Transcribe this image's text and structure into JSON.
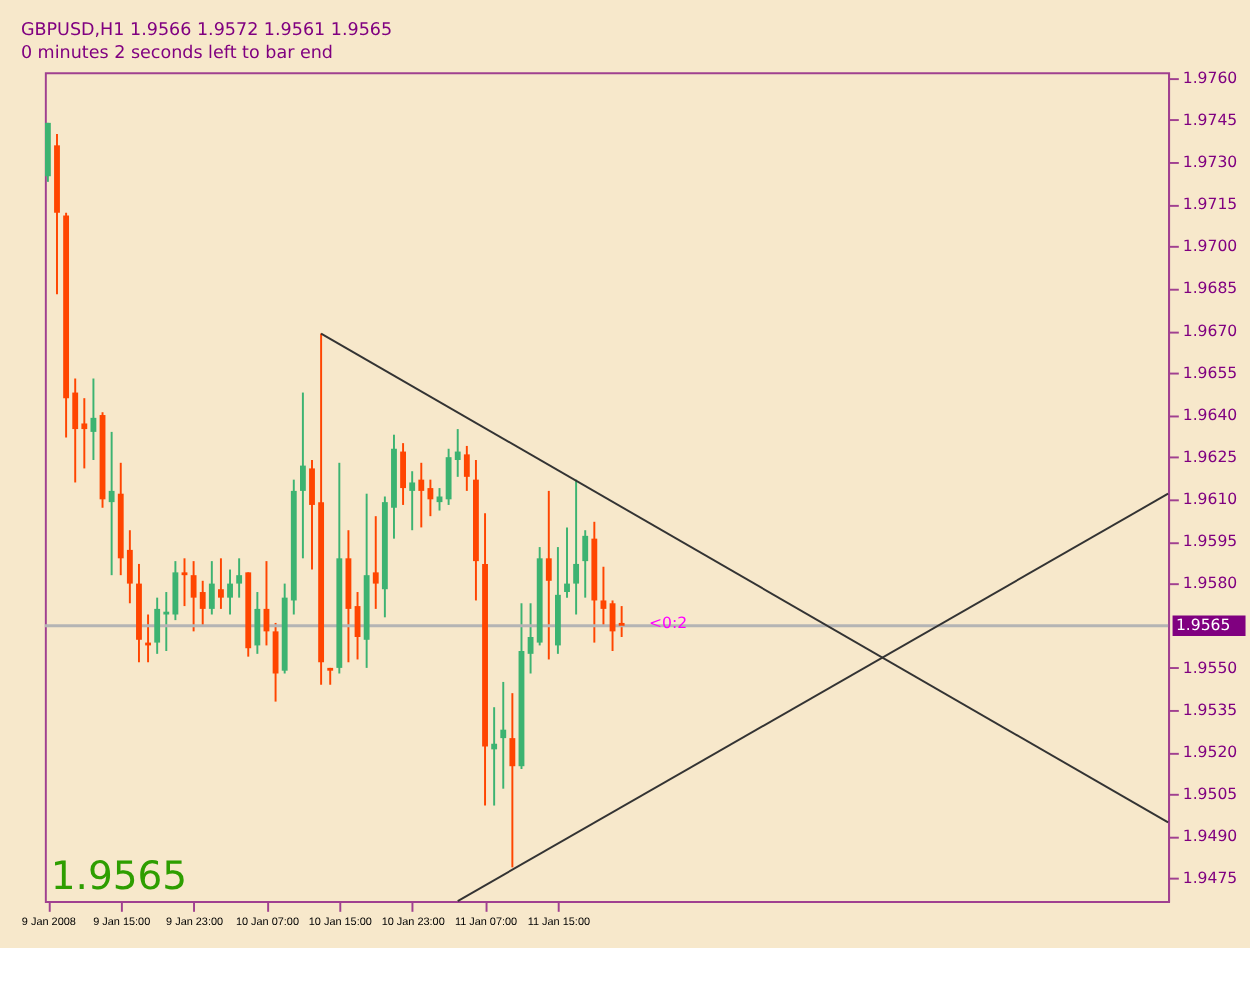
{
  "chart_data": {
    "type": "candlestick",
    "title": "GBPUSD,H1  1.9566 1.9572 1.9561 1.9565",
    "subtitle": "0 minutes 2 seconds left to bar end",
    "annotations": [
      "1.9565",
      {
        "text": "<0:2",
        "x": "2008-01-11T22:00",
        "y": 1.9565
      }
    ],
    "series": [
      {
        "type": "candlestick",
        "x": [
          "2008-01-09T07:00",
          "2008-01-09T08:00",
          "2008-01-09T09:00",
          "2008-01-09T10:00",
          "2008-01-09T11:00",
          "2008-01-09T12:00",
          "2008-01-09T13:00",
          "2008-01-09T14:00",
          "2008-01-09T15:00",
          "2008-01-09T16:00",
          "2008-01-09T17:00",
          "2008-01-09T18:00",
          "2008-01-09T19:00",
          "2008-01-09T20:00",
          "2008-01-09T21:00",
          "2008-01-09T22:00",
          "2008-01-09T23:00",
          "2008-01-10T00:00",
          "2008-01-10T01:00",
          "2008-01-10T02:00",
          "2008-01-10T03:00",
          "2008-01-10T04:00",
          "2008-01-10T05:00",
          "2008-01-10T06:00",
          "2008-01-10T07:00",
          "2008-01-10T08:00",
          "2008-01-10T09:00",
          "2008-01-10T10:00",
          "2008-01-10T11:00",
          "2008-01-10T12:00",
          "2008-01-10T13:00",
          "2008-01-10T14:00",
          "2008-01-10T15:00",
          "2008-01-10T16:00",
          "2008-01-10T17:00",
          "2008-01-10T18:00",
          "2008-01-10T19:00",
          "2008-01-10T20:00",
          "2008-01-10T21:00",
          "2008-01-10T22:00",
          "2008-01-10T23:00",
          "2008-01-11T00:00",
          "2008-01-11T01:00",
          "2008-01-11T02:00",
          "2008-01-11T03:00",
          "2008-01-11T04:00",
          "2008-01-11T05:00",
          "2008-01-11T06:00",
          "2008-01-11T07:00",
          "2008-01-11T08:00",
          "2008-01-11T09:00",
          "2008-01-11T10:00",
          "2008-01-11T11:00",
          "2008-01-11T12:00",
          "2008-01-11T13:00",
          "2008-01-11T14:00",
          "2008-01-11T15:00",
          "2008-01-11T16:00",
          "2008-01-11T17:00",
          "2008-01-11T18:00",
          "2008-01-11T19:00",
          "2008-01-11T20:00",
          "2008-01-11T21:00",
          "2008-01-11T22:00"
        ],
        "ohlc": [
          [
            1.9725,
            1.9744,
            1.9723,
            1.9744
          ],
          [
            1.9736,
            1.974,
            1.9683,
            1.9712
          ],
          [
            1.9711,
            1.9712,
            1.9632,
            1.9646
          ],
          [
            1.9648,
            1.9653,
            1.9616,
            1.9635
          ],
          [
            1.9637,
            1.9646,
            1.9621,
            1.9635
          ],
          [
            1.9634,
            1.9653,
            1.9624,
            1.9639
          ],
          [
            1.964,
            1.9641,
            1.9607,
            1.961
          ],
          [
            1.9609,
            1.9634,
            1.9583,
            1.9613
          ],
          [
            1.9612,
            1.9623,
            1.9583,
            1.9589
          ],
          [
            1.9592,
            1.9599,
            1.9573,
            1.958
          ],
          [
            1.958,
            1.9587,
            1.9552,
            1.956
          ],
          [
            1.9559,
            1.9569,
            1.9552,
            1.9558
          ],
          [
            1.9559,
            1.9575,
            1.9555,
            1.9571
          ],
          [
            1.9569,
            1.9577,
            1.9556,
            1.957
          ],
          [
            1.9569,
            1.9588,
            1.9567,
            1.9584
          ],
          [
            1.9584,
            1.9589,
            1.9572,
            1.9583
          ],
          [
            1.9583,
            1.9588,
            1.9563,
            1.9575
          ],
          [
            1.9577,
            1.9581,
            1.9565,
            1.9571
          ],
          [
            1.9571,
            1.9588,
            1.9569,
            1.958
          ],
          [
            1.9578,
            1.9589,
            1.9571,
            1.9575
          ],
          [
            1.9575,
            1.9585,
            1.9569,
            1.958
          ],
          [
            1.958,
            1.9589,
            1.9575,
            1.9583
          ],
          [
            1.9584,
            1.9584,
            1.9554,
            1.9557
          ],
          [
            1.9558,
            1.9577,
            1.9555,
            1.9571
          ],
          [
            1.9571,
            1.9588,
            1.9558,
            1.9563
          ],
          [
            1.9563,
            1.9566,
            1.9538,
            1.9548
          ],
          [
            1.9549,
            1.958,
            1.9548,
            1.9575
          ],
          [
            1.9574,
            1.9617,
            1.9569,
            1.9613
          ],
          [
            1.9613,
            1.9648,
            1.9589,
            1.9622
          ],
          [
            1.9621,
            1.9624,
            1.9585,
            1.9608
          ],
          [
            1.9609,
            1.9669,
            1.9544,
            1.9552
          ],
          [
            1.955,
            1.955,
            1.9544,
            1.9549
          ],
          [
            1.955,
            1.9623,
            1.9548,
            1.9589
          ],
          [
            1.9589,
            1.9599,
            1.9552,
            1.9571
          ],
          [
            1.9572,
            1.9577,
            1.9553,
            1.9561
          ],
          [
            1.956,
            1.9612,
            1.955,
            1.9583
          ],
          [
            1.9584,
            1.9604,
            1.9571,
            1.958
          ],
          [
            1.9578,
            1.9611,
            1.9568,
            1.9609
          ],
          [
            1.9607,
            1.9633,
            1.9596,
            1.9628
          ],
          [
            1.9627,
            1.963,
            1.9608,
            1.9614
          ],
          [
            1.9613,
            1.962,
            1.9599,
            1.9616
          ],
          [
            1.9617,
            1.9623,
            1.96,
            1.9613
          ],
          [
            1.9614,
            1.9617,
            1.9604,
            1.961
          ],
          [
            1.9609,
            1.9614,
            1.9606,
            1.9611
          ],
          [
            1.961,
            1.9628,
            1.9608,
            1.9625
          ],
          [
            1.9624,
            1.9635,
            1.9618,
            1.9627
          ],
          [
            1.9626,
            1.9629,
            1.9613,
            1.9618
          ],
          [
            1.9617,
            1.9624,
            1.9574,
            1.9588
          ],
          [
            1.9587,
            1.9605,
            1.9501,
            1.9522
          ],
          [
            1.9521,
            1.9536,
            1.9501,
            1.9523
          ],
          [
            1.9525,
            1.9545,
            1.9507,
            1.9528
          ],
          [
            1.9525,
            1.9541,
            1.9479,
            1.9515
          ],
          [
            1.9515,
            1.9573,
            1.9514,
            1.9556
          ],
          [
            1.9555,
            1.9573,
            1.9548,
            1.9561
          ],
          [
            1.9559,
            1.9593,
            1.9558,
            1.9589
          ],
          [
            1.9589,
            1.9613,
            1.9553,
            1.9581
          ],
          [
            1.9558,
            1.9593,
            1.9555,
            1.9576
          ],
          [
            1.9577,
            1.96,
            1.9575,
            1.958
          ],
          [
            1.958,
            1.9617,
            1.9569,
            1.9587
          ],
          [
            1.9588,
            1.9599,
            1.9575,
            1.9597
          ],
          [
            1.9596,
            1.9602,
            1.9559,
            1.9574
          ],
          [
            1.9574,
            1.9586,
            1.9565,
            1.9571
          ],
          [
            1.9573,
            1.9574,
            1.9556,
            1.9563
          ],
          [
            1.9566,
            1.9572,
            1.9561,
            1.9565
          ]
        ],
        "colors": [
          "#3cb371",
          "#ff4500",
          "#ff4500",
          "#ff4500",
          "#ff4500",
          "#3cb371",
          "#ff4500",
          "#3cb371",
          "#ff4500",
          "#ff4500",
          "#ff4500",
          "#ff4500",
          "#3cb371",
          "#3cb371",
          "#3cb371",
          "#ff4500",
          "#ff4500",
          "#ff4500",
          "#3cb371",
          "#ff4500",
          "#3cb371",
          "#3cb371",
          "#ff4500",
          "#3cb371",
          "#ff4500",
          "#ff4500",
          "#3cb371",
          "#3cb371",
          "#3cb371",
          "#ff4500",
          "#ff4500",
          "#ff4500",
          "#3cb371",
          "#ff4500",
          "#ff4500",
          "#3cb371",
          "#ff4500",
          "#3cb371",
          "#3cb371",
          "#ff4500",
          "#3cb371",
          "#ff4500",
          "#ff4500",
          "#3cb371",
          "#3cb371",
          "#3cb371",
          "#ff4500",
          "#ff4500",
          "#ff4500",
          "#3cb371",
          "#3cb371",
          "#ff4500",
          "#3cb371",
          "#3cb371",
          "#3cb371",
          "#ff4500",
          "#3cb371",
          "#3cb371",
          "#3cb371",
          "#3cb371",
          "#ff4500",
          "#ff4500",
          "#ff4500",
          "#ff4500"
        ]
      },
      {
        "type": "line",
        "color": "#333333",
        "x": [
          "2008-01-10T13:00",
          "2008-01-14T10:00"
        ],
        "values": [
          1.9669,
          1.9495
        ]
      },
      {
        "type": "line",
        "color": "#333333",
        "x": [
          "2008-01-11T04:00",
          "2008-01-14T10:00"
        ],
        "values": [
          1.9467,
          1.9612
        ]
      }
    ],
    "xlim": [
      "2008-01-09T06:40",
      "2008-01-14T10:00"
    ],
    "xticks": [
      {
        "value": "2008-01-09T07:00",
        "label": "9 Jan 2008"
      },
      {
        "value": "2008-01-09T15:00",
        "label": "9 Jan 15:00"
      },
      {
        "value": "2008-01-09T23:00",
        "label": "9 Jan 23:00"
      },
      {
        "value": "2008-01-10T07:00",
        "label": "10 Jan 07:00"
      },
      {
        "value": "2008-01-10T15:00",
        "label": "10 Jan 15:00"
      },
      {
        "value": "2008-01-10T23:00",
        "label": "10 Jan 23:00"
      },
      {
        "value": "2008-01-11T07:00",
        "label": "11 Jan 07:00"
      },
      {
        "value": "2008-01-11T15:00",
        "label": "11 Jan 15:00"
      }
    ],
    "ylim": [
      1.9467,
      1.9762
    ],
    "yticks": [
      {
        "value": 1.976,
        "label": "1.9760"
      },
      1.9745,
      {
        "value": 1.973,
        "label": "1.9730"
      },
      1.9715,
      {
        "value": 1.97,
        "label": "1.9700"
      },
      1.9685,
      {
        "value": 1.967,
        "label": "1.9670"
      },
      1.9655,
      {
        "value": 1.964,
        "label": "1.9640"
      },
      1.9625,
      {
        "value": 1.961,
        "label": "1.9610"
      },
      1.9595,
      {
        "value": 1.958,
        "label": "1.9580"
      },
      {
        "value": 1.955,
        "label": "1.9550"
      },
      1.9535,
      {
        "value": 1.952,
        "label": "1.9520"
      },
      1.9505,
      {
        "value": 1.949,
        "label": "1.9490"
      },
      1.9475
    ],
    "ref_lines": [
      {
        "axis": "y",
        "value": 1.9565,
        "label": "1.9565",
        "color": "#b4b4b4"
      }
    ]
  }
}
